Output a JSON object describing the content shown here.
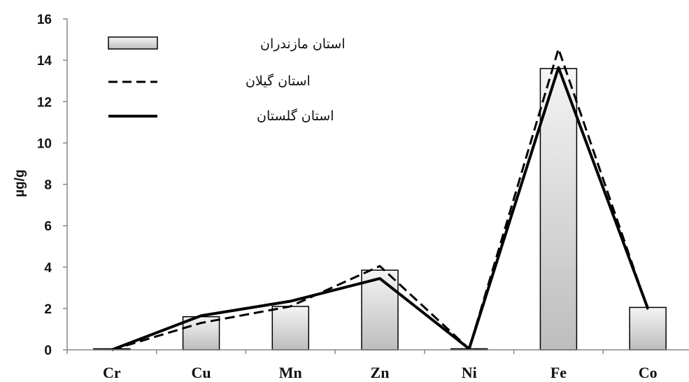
{
  "chart_data": {
    "type": "bar",
    "categories": [
      "Cr",
      "Cu",
      "Mn",
      "Zn",
      "Ni",
      "Fe",
      "Co"
    ],
    "ylabel": "µg/g",
    "xlabel": "",
    "ylim": [
      0,
      16
    ],
    "yticks": [
      0,
      2,
      4,
      6,
      8,
      10,
      12,
      14,
      16
    ],
    "grid": false,
    "legend_position": "top-left",
    "series": [
      {
        "name": "استان مازندران",
        "kind": "bar",
        "style": "gray-gradient",
        "values": [
          0.05,
          1.6,
          2.1,
          3.85,
          0.05,
          13.6,
          2.05
        ]
      },
      {
        "name": "استان گیلان",
        "kind": "line",
        "style": "dashed",
        "values": [
          0.0,
          1.3,
          2.1,
          4.05,
          0.05,
          14.55,
          1.95
        ]
      },
      {
        "name": "استان گلستان",
        "kind": "line",
        "style": "solid",
        "values": [
          0.0,
          1.65,
          2.35,
          3.45,
          0.05,
          13.65,
          2.0
        ]
      }
    ],
    "colors": {
      "bar_light": "#f4f4f4",
      "bar_dark": "#bdbdbd",
      "line": "#000000",
      "axis": "#888888"
    }
  }
}
